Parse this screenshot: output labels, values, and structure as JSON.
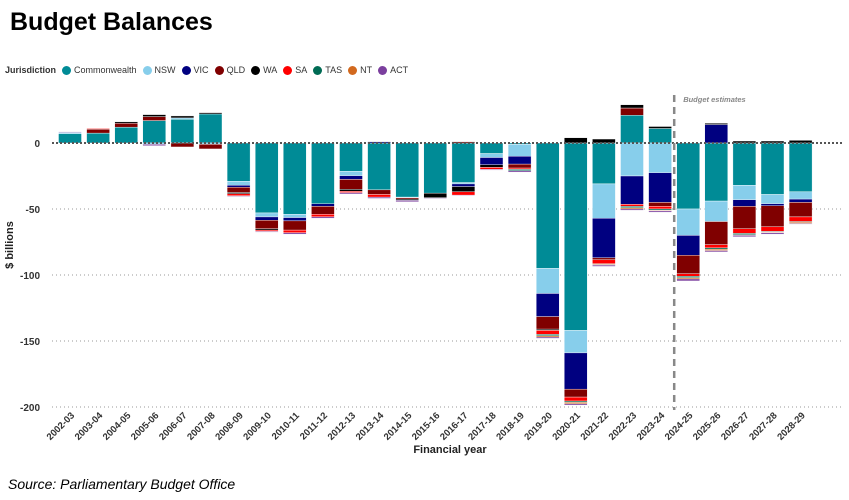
{
  "title": "Budget Balances",
  "source": "Source: Parliamentary Budget Office",
  "chart_data": {
    "type": "bar",
    "stacked": true,
    "title": "Budget Balances",
    "xlabel": "Financial year",
    "ylabel": "$ billions",
    "ylim": [
      -200,
      25
    ],
    "yticks": [
      0,
      -50,
      -100,
      -150,
      -200
    ],
    "legend_title": "Jurisdiction",
    "legend_position": "top-left",
    "annotation": "Budget estimates",
    "annotation_from_category": "2024-25",
    "categories": [
      "2002-03",
      "2003-04",
      "2004-05",
      "2005-06",
      "2006-07",
      "2007-08",
      "2008-09",
      "2009-10",
      "2010-11",
      "2011-12",
      "2012-13",
      "2013-14",
      "2014-15",
      "2015-16",
      "2016-17",
      "2017-18",
      "2018-19",
      "2019-20",
      "2020-21",
      "2021-22",
      "2022-23",
      "2023-24",
      "2024-25",
      "2025-26",
      "2026-27",
      "2027-28",
      "2028-29"
    ],
    "series": [
      {
        "name": "Commonwealth",
        "color": "#008B96",
        "values": [
          7,
          7.5,
          12,
          17,
          18,
          22,
          -29,
          -53,
          -54,
          -46,
          -21.5,
          -35.5,
          -41,
          -38,
          -30,
          -8,
          -1,
          -95,
          -142,
          -31,
          21,
          11,
          -50,
          -44,
          -32,
          -39,
          -37
        ]
      },
      {
        "name": "NSW",
        "color": "#87CEEB",
        "values": [
          1,
          0,
          0,
          -1,
          1,
          -1,
          -3,
          -3,
          -2.5,
          0,
          -3.3,
          0,
          -0.5,
          0,
          -1,
          -3,
          -9,
          -19,
          -17,
          -26,
          -25,
          -22.5,
          -20,
          -15.5,
          -11,
          -7,
          -5.5
        ]
      },
      {
        "name": "VIC",
        "color": "#000080",
        "values": [
          0,
          0,
          0,
          0,
          0,
          0,
          -1.5,
          -2.5,
          -2.5,
          -2,
          -2.8,
          1,
          0,
          0,
          -2,
          -5.5,
          -6,
          -17.5,
          -27.5,
          -30,
          -21.5,
          -22.5,
          -15,
          14,
          -5,
          -1.5,
          -2.5
        ]
      },
      {
        "name": "QLD",
        "color": "#800000",
        "values": [
          0,
          3,
          3,
          3,
          -3,
          -3.5,
          -4,
          -6.5,
          -7,
          -6,
          -7.5,
          -3.5,
          -1,
          0,
          1,
          0,
          -3,
          -9.5,
          -6,
          -1.5,
          5.5,
          -3,
          -14,
          -17.5,
          -17,
          -16,
          -11
        ]
      },
      {
        "name": "WA",
        "color": "#000000",
        "values": [
          0,
          0,
          1,
          1.5,
          1.5,
          1,
          -1,
          -1,
          0,
          0,
          -1.5,
          0,
          -1,
          -3.5,
          -4,
          -2,
          0,
          -1,
          4,
          3,
          2.5,
          1.5,
          0,
          1,
          1.5,
          1.5,
          2
        ]
      },
      {
        "name": "SA",
        "color": "#FF0000",
        "values": [
          0,
          0.5,
          0,
          0,
          0,
          0,
          -1.5,
          -1,
          -2,
          -2,
          -1,
          -2,
          0,
          0,
          -2.5,
          -1.5,
          -1,
          -3,
          -3,
          -3,
          -1.5,
          -2,
          -2,
          -2.5,
          -3.5,
          -3.5,
          -3.5
        ]
      },
      {
        "name": "TAS",
        "color": "#006B54",
        "values": [
          0,
          0,
          0,
          0,
          0,
          0,
          0,
          0,
          0,
          0,
          0,
          0,
          0,
          0,
          0,
          0,
          -1,
          -1,
          -1,
          -0.5,
          -1,
          -1,
          -1,
          -1,
          -1,
          -0.5,
          -0.5
        ]
      },
      {
        "name": "NT",
        "color": "#D2691E",
        "values": [
          0,
          0,
          0,
          0,
          0,
          0,
          0,
          0,
          0,
          0,
          0,
          0,
          0,
          0,
          0,
          0,
          0,
          -1,
          -1,
          -0.5,
          -1,
          -0.5,
          -1,
          -1,
          -0.5,
          -0.5,
          -1
        ]
      },
      {
        "name": "ACT",
        "color": "#7B3F9E",
        "values": [
          0.5,
          0,
          0,
          -1,
          0,
          0,
          -0.5,
          -0.5,
          -1,
          -1,
          -1,
          -1,
          -1,
          -0.5,
          -0.5,
          -0.5,
          -1,
          -1,
          -1,
          -1,
          -1,
          -1,
          -1.5,
          -1,
          -1,
          -1,
          -0.5
        ]
      }
    ]
  }
}
